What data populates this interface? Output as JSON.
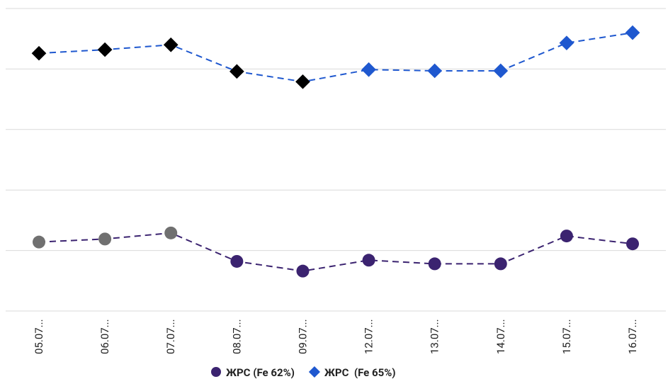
{
  "chart_data": {
    "type": "line",
    "categories": [
      "05.07...",
      "06.07...",
      "07.07...",
      "08.07...",
      "09.07...",
      "12.07...",
      "13.07...",
      "14.07...",
      "15.07...",
      "16.07..."
    ],
    "series": [
      {
        "name": "ЖРС (Fe 62%)",
        "color": "#3b2370",
        "marker": "circle",
        "point_colors": [
          "#707070",
          "#707070",
          "#707070",
          "#3b2370",
          "#3b2370",
          "#3b2370",
          "#3b2370",
          "#3b2370",
          "#3b2370",
          "#3b2370"
        ],
        "values": [
          1.14,
          1.19,
          1.29,
          0.82,
          0.66,
          0.84,
          0.78,
          0.78,
          1.24,
          1.11
        ]
      },
      {
        "name": "ЖРС  (Fe 65%)",
        "color": "#1f58cf",
        "marker": "diamond",
        "point_colors": [
          "#000000",
          "#000000",
          "#000000",
          "#000000",
          "#000000",
          "#1f58cf",
          "#1f58cf",
          "#1f58cf",
          "#1f58cf",
          "#1f58cf"
        ],
        "values": [
          4.26,
          4.32,
          4.4,
          3.96,
          3.79,
          3.99,
          3.97,
          3.97,
          4.43,
          4.6
        ]
      }
    ],
    "ylim": [
      0,
      5
    ],
    "yticks": [
      0,
      1,
      2,
      3,
      4,
      5
    ],
    "grid": true,
    "legend": "bottom"
  }
}
